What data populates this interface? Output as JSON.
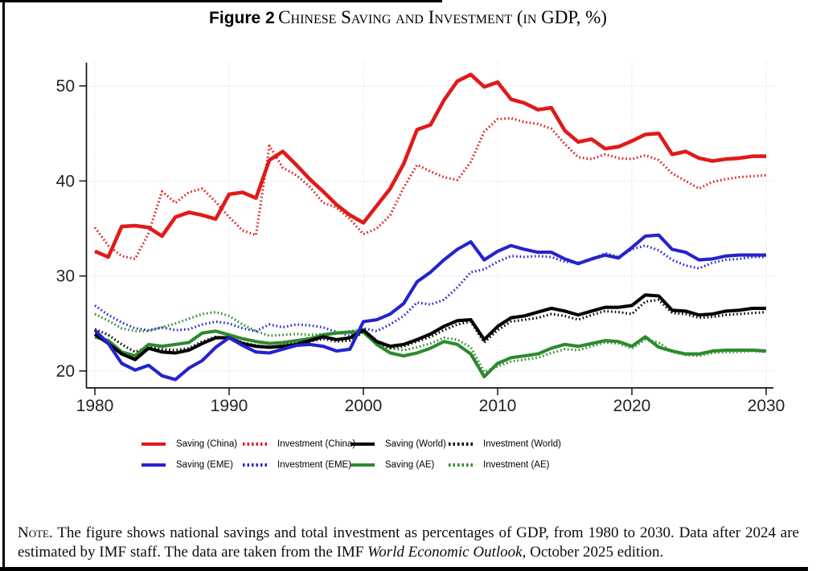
{
  "title": {
    "prefix": "Figure 2",
    "main": "Chinese Saving and Investment (in GDP, %)"
  },
  "note": {
    "label": "Note.",
    "body_before_italic": " The figure shows national savings and total investment as percentages of GDP, from 1980 to 2030. Data after 2024 are estimated by IMF staff. The data are taken from the IMF ",
    "italic": "World Economic Outlook",
    "body_after_italic": ", October 2025 edition."
  },
  "colors": {
    "china": "#e01a1a",
    "eme": "#2323cd",
    "world": "#000000",
    "ae": "#2d8a2d",
    "grid": "#dadada",
    "axis": "#141414"
  },
  "chart_data": {
    "type": "line",
    "title": "Chinese Saving and Investment (in GDP, %)",
    "xlabel": "",
    "ylabel": "",
    "grid": true,
    "legend_position": "bottom",
    "axes": {
      "yticks": [
        20,
        30,
        40,
        50
      ],
      "xticks": [
        1980,
        1990,
        2000,
        2010,
        2020,
        2030
      ],
      "ylim": [
        18.3,
        52.3
      ],
      "xlim": [
        1979.4,
        2030.6
      ]
    },
    "x": [
      1980,
      1981,
      1982,
      1983,
      1984,
      1985,
      1986,
      1987,
      1988,
      1989,
      1990,
      1991,
      1992,
      1993,
      1994,
      1995,
      1996,
      1997,
      1998,
      1999,
      2000,
      2001,
      2002,
      2003,
      2004,
      2005,
      2006,
      2007,
      2008,
      2009,
      2010,
      2011,
      2012,
      2013,
      2014,
      2015,
      2016,
      2017,
      2018,
      2019,
      2020,
      2021,
      2022,
      2023,
      2024,
      2025,
      2026,
      2027,
      2028,
      2029,
      2030
    ],
    "series": [
      {
        "name": "Saving (China)",
        "color": "#e01a1a",
        "style": "solid",
        "values": [
          32.6,
          32.0,
          35.2,
          35.3,
          35.1,
          34.2,
          36.2,
          36.7,
          36.4,
          36.0,
          38.6,
          38.8,
          38.2,
          42.2,
          43.1,
          41.7,
          40.2,
          38.9,
          37.5,
          36.4,
          35.6,
          37.4,
          39.2,
          41.8,
          45.4,
          45.9,
          48.5,
          50.5,
          51.2,
          49.9,
          50.4,
          48.6,
          48.2,
          47.5,
          47.7,
          45.3,
          44.1,
          44.4,
          43.4,
          43.6,
          44.2,
          44.9,
          45.0,
          42.8,
          43.1,
          42.4,
          42.1,
          42.3,
          42.4,
          42.6,
          42.6
        ]
      },
      {
        "name": "Investment (China)",
        "color": "#e01a1a",
        "style": "dotted",
        "values": [
          35.1,
          33.2,
          32.1,
          31.8,
          34.5,
          38.9,
          37.7,
          38.8,
          39.2,
          37.8,
          36.2,
          34.8,
          34.3,
          43.7,
          41.4,
          40.6,
          39.4,
          37.7,
          37.2,
          36.0,
          34.4,
          35.0,
          36.4,
          39.3,
          41.7,
          41.0,
          40.4,
          40.1,
          42.0,
          45.2,
          46.5,
          46.6,
          46.2,
          46.0,
          45.5,
          43.9,
          42.5,
          42.3,
          42.8,
          42.4,
          42.3,
          42.7,
          42.2,
          40.8,
          40.0,
          39.2,
          39.9,
          40.2,
          40.4,
          40.5,
          40.6
        ]
      },
      {
        "name": "Saving (World)",
        "color": "#000000",
        "style": "solid",
        "values": [
          23.9,
          22.9,
          21.8,
          21.2,
          22.4,
          22.0,
          21.9,
          22.2,
          22.9,
          23.5,
          23.5,
          22.9,
          22.6,
          22.5,
          22.6,
          22.8,
          23.2,
          23.6,
          23.3,
          23.5,
          24.3,
          23.1,
          22.6,
          22.8,
          23.3,
          23.9,
          24.7,
          25.3,
          25.4,
          23.3,
          24.7,
          25.6,
          25.8,
          26.2,
          26.6,
          26.3,
          25.9,
          26.3,
          26.7,
          26.7,
          26.9,
          28.0,
          27.9,
          26.4,
          26.3,
          25.9,
          26.0,
          26.3,
          26.4,
          26.6,
          26.6
        ]
      },
      {
        "name": "Investment (World)",
        "color": "#000000",
        "style": "dotted",
        "values": [
          24.4,
          23.8,
          22.8,
          22.0,
          22.5,
          22.3,
          22.2,
          22.4,
          23.1,
          23.6,
          23.5,
          23.0,
          22.7,
          22.5,
          22.7,
          23.0,
          23.1,
          23.4,
          23.1,
          23.2,
          24.1,
          22.9,
          22.4,
          22.6,
          23.1,
          23.6,
          24.3,
          24.9,
          25.2,
          23.0,
          24.3,
          25.2,
          25.4,
          25.6,
          26.0,
          25.8,
          25.4,
          25.9,
          26.3,
          26.2,
          26.0,
          27.3,
          27.5,
          26.1,
          26.0,
          25.6,
          25.7,
          25.9,
          26.0,
          26.1,
          26.2
        ]
      },
      {
        "name": "Saving (EME)",
        "color": "#2323cd",
        "style": "solid",
        "values": [
          24.3,
          22.9,
          20.8,
          20.1,
          20.6,
          19.5,
          19.1,
          20.3,
          21.1,
          22.5,
          23.5,
          22.7,
          22.0,
          21.9,
          22.3,
          22.7,
          22.8,
          22.6,
          22.1,
          22.3,
          25.2,
          25.4,
          26.0,
          27.1,
          29.4,
          30.4,
          31.7,
          32.8,
          33.6,
          31.7,
          32.6,
          33.2,
          32.8,
          32.5,
          32.5,
          31.8,
          31.3,
          31.8,
          32.2,
          31.9,
          33.0,
          34.2,
          34.3,
          32.8,
          32.5,
          31.7,
          31.8,
          32.1,
          32.2,
          32.2,
          32.2
        ]
      },
      {
        "name": "Investment (EME)",
        "color": "#2323cd",
        "style": "dotted",
        "values": [
          26.9,
          25.9,
          25.1,
          24.5,
          24.3,
          24.6,
          24.3,
          24.4,
          24.9,
          25.2,
          25.0,
          24.5,
          24.2,
          24.9,
          24.6,
          24.9,
          24.8,
          24.6,
          24.1,
          23.7,
          24.5,
          24.2,
          24.9,
          25.8,
          27.2,
          27.0,
          27.5,
          28.8,
          30.4,
          30.7,
          31.5,
          32.1,
          32.0,
          32.1,
          32.0,
          31.5,
          31.4,
          31.7,
          32.4,
          32.0,
          32.8,
          33.2,
          32.7,
          31.7,
          31.1,
          30.8,
          31.4,
          31.7,
          31.8,
          32.0,
          32.0
        ]
      },
      {
        "name": "Saving (AE)",
        "color": "#2d8a2d",
        "style": "solid",
        "values": [
          23.6,
          23.2,
          22.0,
          21.6,
          22.8,
          22.6,
          22.8,
          23.0,
          24.0,
          24.2,
          23.8,
          23.4,
          23.1,
          22.9,
          23.0,
          23.2,
          23.4,
          23.8,
          24.0,
          24.1,
          24.1,
          22.8,
          21.9,
          21.6,
          21.9,
          22.4,
          23.1,
          22.8,
          21.8,
          19.4,
          20.8,
          21.4,
          21.6,
          21.8,
          22.4,
          22.8,
          22.6,
          22.9,
          23.2,
          23.1,
          22.6,
          23.6,
          22.5,
          22.1,
          21.8,
          21.8,
          22.1,
          22.2,
          22.2,
          22.2,
          22.1
        ]
      },
      {
        "name": "Investment (AE)",
        "color": "#2d8a2d",
        "style": "dotted",
        "values": [
          26.0,
          25.3,
          24.5,
          24.2,
          24.2,
          24.6,
          25.0,
          25.5,
          26.0,
          26.2,
          25.8,
          24.9,
          24.2,
          23.7,
          23.8,
          23.9,
          23.8,
          23.9,
          24.0,
          24.2,
          24.4,
          23.2,
          22.4,
          22.2,
          22.5,
          22.9,
          23.5,
          23.3,
          22.5,
          19.9,
          20.5,
          21.0,
          21.2,
          21.4,
          21.9,
          22.3,
          22.2,
          22.6,
          23.0,
          22.9,
          22.4,
          23.3,
          23.0,
          22.0,
          21.7,
          21.6,
          21.9,
          22.0,
          22.0,
          22.1,
          22.0
        ]
      }
    ]
  }
}
